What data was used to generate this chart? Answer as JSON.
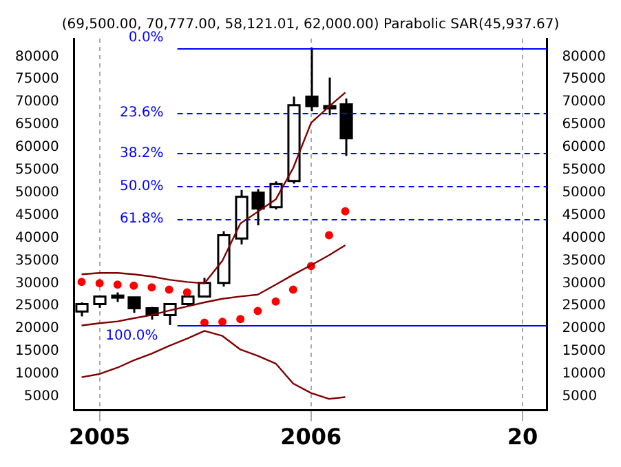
{
  "chart_data": {
    "type": "candlestick",
    "title": "(69,500.00, 70,777.00, 58,121.01, 62,000.00) Parabolic SAR(45,937.67)",
    "x": [
      "2004-12",
      "2005-01",
      "2005-02",
      "2005-03",
      "2005-04",
      "2005-05",
      "2005-06",
      "2005-07",
      "2005-08",
      "2005-09",
      "2005-10",
      "2005-11",
      "2005-12",
      "2006-01",
      "2006-02",
      "2006-03"
    ],
    "ohlc": [
      [
        23800,
        25800,
        22700,
        25400
      ],
      [
        25400,
        27300,
        24600,
        27100
      ],
      [
        27300,
        28000,
        25900,
        27300
      ],
      [
        26900,
        27000,
        23500,
        24500
      ],
      [
        24500,
        24800,
        22000,
        23000
      ],
      [
        23000,
        25600,
        20800,
        25400
      ],
      [
        25400,
        27300,
        24900,
        27100
      ],
      [
        27100,
        31200,
        27000,
        30100
      ],
      [
        30100,
        41500,
        29300,
        40600
      ],
      [
        39900,
        50600,
        38600,
        49100
      ],
      [
        50000,
        50800,
        42800,
        46500
      ],
      [
        46800,
        52500,
        46300,
        51900
      ],
      [
        52600,
        71200,
        52000,
        69300
      ],
      [
        71200,
        82000,
        68000,
        69100
      ],
      [
        69100,
        75400,
        67100,
        68600
      ],
      [
        69500,
        70777,
        58121.01,
        62000
      ]
    ],
    "series": [
      {
        "type": "line",
        "color": "#800000",
        "values": [
          32000,
          32300,
          32300,
          32000,
          31500,
          30800,
          30300,
          30000,
          35000,
          43200,
          45800,
          48500,
          55400,
          65400,
          69000,
          72100
        ]
      },
      {
        "type": "line",
        "color": "#800000",
        "values": [
          20700,
          21200,
          21600,
          22300,
          23000,
          24000,
          24900,
          25800,
          26600,
          27100,
          27500,
          29700,
          31900,
          34000,
          36200,
          38400
        ]
      },
      {
        "type": "line",
        "color": "#800000",
        "values": [
          9300,
          10000,
          11400,
          13000,
          14500,
          16200,
          17800,
          19500,
          18400,
          15400,
          14000,
          12300,
          7900,
          5800,
          4500,
          4900
        ]
      },
      {
        "type": "scatter",
        "color": "#ff0000",
        "marker": "circle",
        "values": [
          30300,
          30000,
          29700,
          29500,
          29100,
          28600,
          28000,
          21300,
          21500,
          22100,
          23900,
          26000,
          28600,
          33800,
          40600,
          45900
        ]
      }
    ],
    "xlim": [
      "2004-11-18",
      "2007-02-12"
    ],
    "xticks": [
      {
        "value": "2005-01",
        "label": "2005"
      },
      {
        "value": "2006-01",
        "label": "2006"
      },
      {
        "value": "2007-01",
        "label": "20"
      }
    ],
    "ylim": [
      2000,
      84000
    ],
    "yticks": [
      5000,
      10000,
      15000,
      20000,
      25000,
      30000,
      35000,
      40000,
      45000,
      50000,
      55000,
      60000,
      65000,
      70000,
      75000,
      80000
    ],
    "y2lim": [
      2000,
      84000
    ],
    "y2ticks": [
      5000,
      10000,
      15000,
      20000,
      25000,
      30000,
      35000,
      40000,
      45000,
      50000,
      55000,
      60000,
      65000,
      70000,
      75000,
      80000
    ],
    "ref_lines": [
      {
        "axis": "y",
        "value": 82000,
        "color": "#0000ff",
        "line_style": "solid"
      },
      {
        "axis": "y",
        "value": 67557,
        "color": "#0000ff",
        "line_style": "dashed"
      },
      {
        "axis": "y",
        "value": 58622,
        "color": "#0000ff",
        "line_style": "dashed"
      },
      {
        "axis": "y",
        "value": 51400,
        "color": "#0000ff",
        "line_style": "dashed"
      },
      {
        "axis": "y",
        "value": 44178,
        "color": "#0000ff",
        "line_style": "dashed"
      },
      {
        "axis": "y",
        "value": 20800,
        "color": "#0000ff",
        "line_style": "solid"
      }
    ],
    "annotations": [
      "0.0%",
      "23.6%",
      "38.2%",
      "50.0%",
      "61.8%",
      "100.0%"
    ],
    "grid": "x",
    "legend": false
  }
}
